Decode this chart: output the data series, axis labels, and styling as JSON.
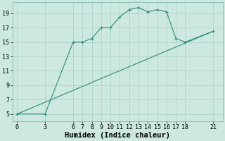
{
  "line1_x": [
    0,
    3,
    6,
    7,
    8,
    9,
    10,
    11,
    12,
    13,
    14,
    15,
    16,
    17,
    18,
    21
  ],
  "line1_y": [
    5,
    5,
    15,
    15,
    15.5,
    17,
    17,
    18.5,
    19.5,
    19.8,
    19.2,
    19.5,
    19.2,
    15.5,
    15,
    16.5
  ],
  "line2_x": [
    0,
    21
  ],
  "line2_y": [
    5,
    16.5
  ],
  "line_color": "#2e8b7a",
  "bg_color": "#cce8e0",
  "grid_color": "#aacfc8",
  "xlabel": "Humidex (Indice chaleur)",
  "xticks": [
    0,
    3,
    6,
    7,
    8,
    9,
    10,
    11,
    12,
    13,
    14,
    15,
    16,
    17,
    18,
    21
  ],
  "yticks": [
    5,
    7,
    9,
    11,
    13,
    15,
    17,
    19
  ],
  "xlim": [
    -0.5,
    22
  ],
  "ylim": [
    4.0,
    20.5
  ],
  "tick_fontsize": 6,
  "label_fontsize": 7.5
}
